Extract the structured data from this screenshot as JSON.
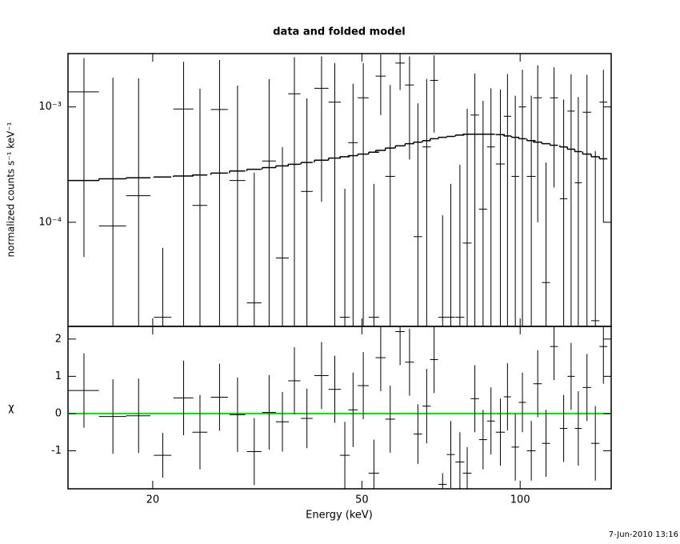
{
  "chart_data": [
    {
      "type": "errorbar",
      "title": "data and folded model",
      "ylabel": "normalized counts s⁻¹ keV⁻¹",
      "xlog": true,
      "ylog": true,
      "color": "#000000",
      "xlim": [
        13.8,
        149
      ],
      "xticks": [
        20,
        50,
        100
      ],
      "ylim": [
        1.25e-05,
        0.0029
      ],
      "yticks": [
        {
          "value": 0.0001,
          "label": "10⁻⁴"
        },
        {
          "value": 0.001,
          "label": "10⁻³"
        }
      ],
      "x": [
        14.8,
        16.8,
        18.8,
        20.9,
        22.9,
        24.6,
        26.8,
        29.0,
        31.2,
        33.3,
        35.3,
        37.2,
        39.3,
        41.9,
        44.4,
        46.4,
        48.1,
        50.3,
        52.7,
        54.3,
        56.6,
        59.1,
        61.6,
        63.9,
        66.4,
        68.6,
        71.2,
        73.8,
        76.8,
        79.3,
        82,
        85,
        88,
        91.7,
        94.6,
        97.9,
        101,
        105,
        108,
        112,
        116,
        121,
        125,
        129,
        134,
        139,
        144
      ],
      "x_err": [
        1.0,
        1.0,
        1.0,
        0.8,
        1.0,
        0.8,
        1.0,
        1.0,
        1.0,
        1.0,
        1.0,
        1.0,
        1.0,
        1.3,
        1.2,
        1.0,
        1.0,
        1.2,
        1.2,
        1.2,
        1.2,
        1.2,
        1.2,
        1.2,
        1.2,
        1.2,
        1.3,
        1.3,
        1.5,
        1.5,
        1.5,
        1.5,
        1.5,
        1.8,
        1.5,
        1.6,
        1.6,
        2,
        2,
        2,
        2,
        2,
        2,
        2,
        2.5,
        2.5,
        2.5
      ],
      "values": [
        0.00135,
        9.3e-05,
        0.00017,
        1.5e-05,
        0.00096,
        0.00014,
        0.00095,
        0.00023,
        2e-05,
        0.00034,
        4.9e-05,
        0.0013,
        0.000185,
        0.00145,
        0.0011,
        1.5e-05,
        0.00049,
        0.0012,
        1.5e-05,
        0.00185,
        0.00025,
        0.0024,
        0.00155,
        7.5e-05,
        0.00045,
        0.0017,
        1.5e-05,
        1.5e-05,
        1.5e-05,
        6.6e-05,
        0.00085,
        0.00013,
        0.00045,
        0.00032,
        0.00083,
        0.00025,
        0.001,
        0.00025,
        0.0012,
        3e-05,
        0.0012,
        0.00016,
        0.00092,
        0.00022,
        0.0009,
        1.4e-05,
        0.0011
      ],
      "errors": [
        0.0013,
        0.0017,
        0.0016,
        4.5e-05,
        0.0015,
        0.0013,
        0.0016,
        0.0013,
        0.00025,
        0.0014,
        0.0004,
        0.0014,
        0.001,
        0.0013,
        0.0013,
        0.00018,
        0.0011,
        0.0012,
        0.0002,
        0.001,
        0.0013,
        0.001,
        0.0012,
        0.001,
        0.0013,
        0.0011,
        0.0001,
        0.0002,
        0.0003,
        0.0009,
        0.0011,
        0.001,
        0.001,
        0.0011,
        0.0011,
        0.001,
        0.0011,
        0.001,
        0.0011,
        0.0003,
        0.001,
        0.001,
        0.001,
        0.001,
        0.001,
        0.0004,
        0.001
      ],
      "model": [
        0.00023,
        0.000238,
        0.000243,
        0.000247,
        0.000252,
        0.000257,
        0.000267,
        0.000278,
        0.000288,
        0.000298,
        0.000308,
        0.000318,
        0.00033,
        0.000345,
        0.00036,
        0.00037,
        0.000378,
        0.00039,
        0.000405,
        0.00042,
        0.00044,
        0.00046,
        0.00048,
        0.000495,
        0.00051,
        0.00053,
        0.000545,
        0.000555,
        0.00057,
        0.00058,
        0.00058,
        0.00058,
        0.00058,
        0.000575,
        0.00056,
        0.000545,
        0.00053,
        0.00051,
        0.000495,
        0.00048,
        0.000465,
        0.00045,
        0.00043,
        0.00041,
        0.00039,
        0.00037,
        0.000355
      ]
    },
    {
      "type": "errorbar",
      "ylabel": "χ",
      "xlabel": "Energy (keV)",
      "timestamp": "7-Jun-2010 13:16",
      "xlog": true,
      "ylog": false,
      "color": "#000000",
      "xlim": [
        13.8,
        149
      ],
      "xticks": [
        20,
        50,
        100
      ],
      "ylim": [
        -2.02,
        2.34
      ],
      "yticks": [
        -1,
        0,
        1,
        2
      ],
      "reference": 0,
      "reference_color": "#00dd00",
      "x": [
        14.8,
        16.8,
        18.8,
        20.9,
        22.9,
        24.6,
        26.8,
        29.0,
        31.2,
        33.3,
        35.3,
        37.2,
        39.3,
        41.9,
        44.4,
        46.4,
        48.1,
        50.3,
        52.7,
        54.3,
        56.6,
        59.1,
        61.6,
        63.9,
        66.4,
        68.6,
        71.2,
        73.8,
        76.8,
        79.3,
        82,
        85,
        88,
        91.7,
        94.6,
        97.9,
        101,
        105,
        108,
        112,
        116,
        121,
        125,
        129,
        134,
        139,
        144
      ],
      "x_err": [
        1.0,
        1.0,
        1.0,
        0.8,
        1.0,
        0.8,
        1.0,
        1.0,
        1.0,
        1.0,
        1.0,
        1.0,
        1.0,
        1.3,
        1.2,
        1.0,
        1.0,
        1.2,
        1.2,
        1.2,
        1.2,
        1.2,
        1.2,
        1.2,
        1.2,
        1.2,
        1.3,
        1.3,
        1.5,
        1.5,
        1.5,
        1.5,
        1.5,
        1.8,
        1.5,
        1.6,
        1.6,
        2,
        2,
        2,
        2,
        2,
        2,
        2,
        2.5,
        2.5,
        2.5
      ],
      "values": [
        0.62,
        -0.08,
        -0.06,
        -1.12,
        0.42,
        -0.5,
        0.44,
        -0.03,
        -1.02,
        0.03,
        -0.22,
        0.88,
        -0.13,
        1.02,
        0.65,
        -1.12,
        0.1,
        0.75,
        -1.6,
        1.5,
        -0.15,
        2.2,
        1.38,
        -0.55,
        0.2,
        1.45,
        -1.9,
        -1.1,
        -1.3,
        -1.6,
        0.4,
        -0.7,
        -0.2,
        -0.5,
        0.45,
        -0.9,
        0.3,
        -1.0,
        0.8,
        -0.8,
        1.8,
        -0.4,
        1.0,
        -0.4,
        0.7,
        -0.8,
        1.8
      ],
      "errors": [
        1.0,
        1.0,
        1.0,
        0.6,
        1.0,
        1.0,
        0.9,
        1.0,
        0.9,
        1.0,
        0.8,
        0.9,
        0.8,
        0.9,
        0.9,
        0.9,
        1.0,
        0.9,
        0.9,
        0.9,
        0.9,
        0.9,
        0.9,
        0.8,
        1.0,
        0.9,
        0.3,
        0.9,
        0.8,
        0.7,
        0.9,
        0.8,
        0.9,
        0.9,
        0.9,
        0.9,
        0.8,
        0.8,
        0.9,
        0.9,
        0.9,
        0.9,
        0.9,
        1.0,
        0.9,
        1.0,
        1.0
      ]
    }
  ]
}
